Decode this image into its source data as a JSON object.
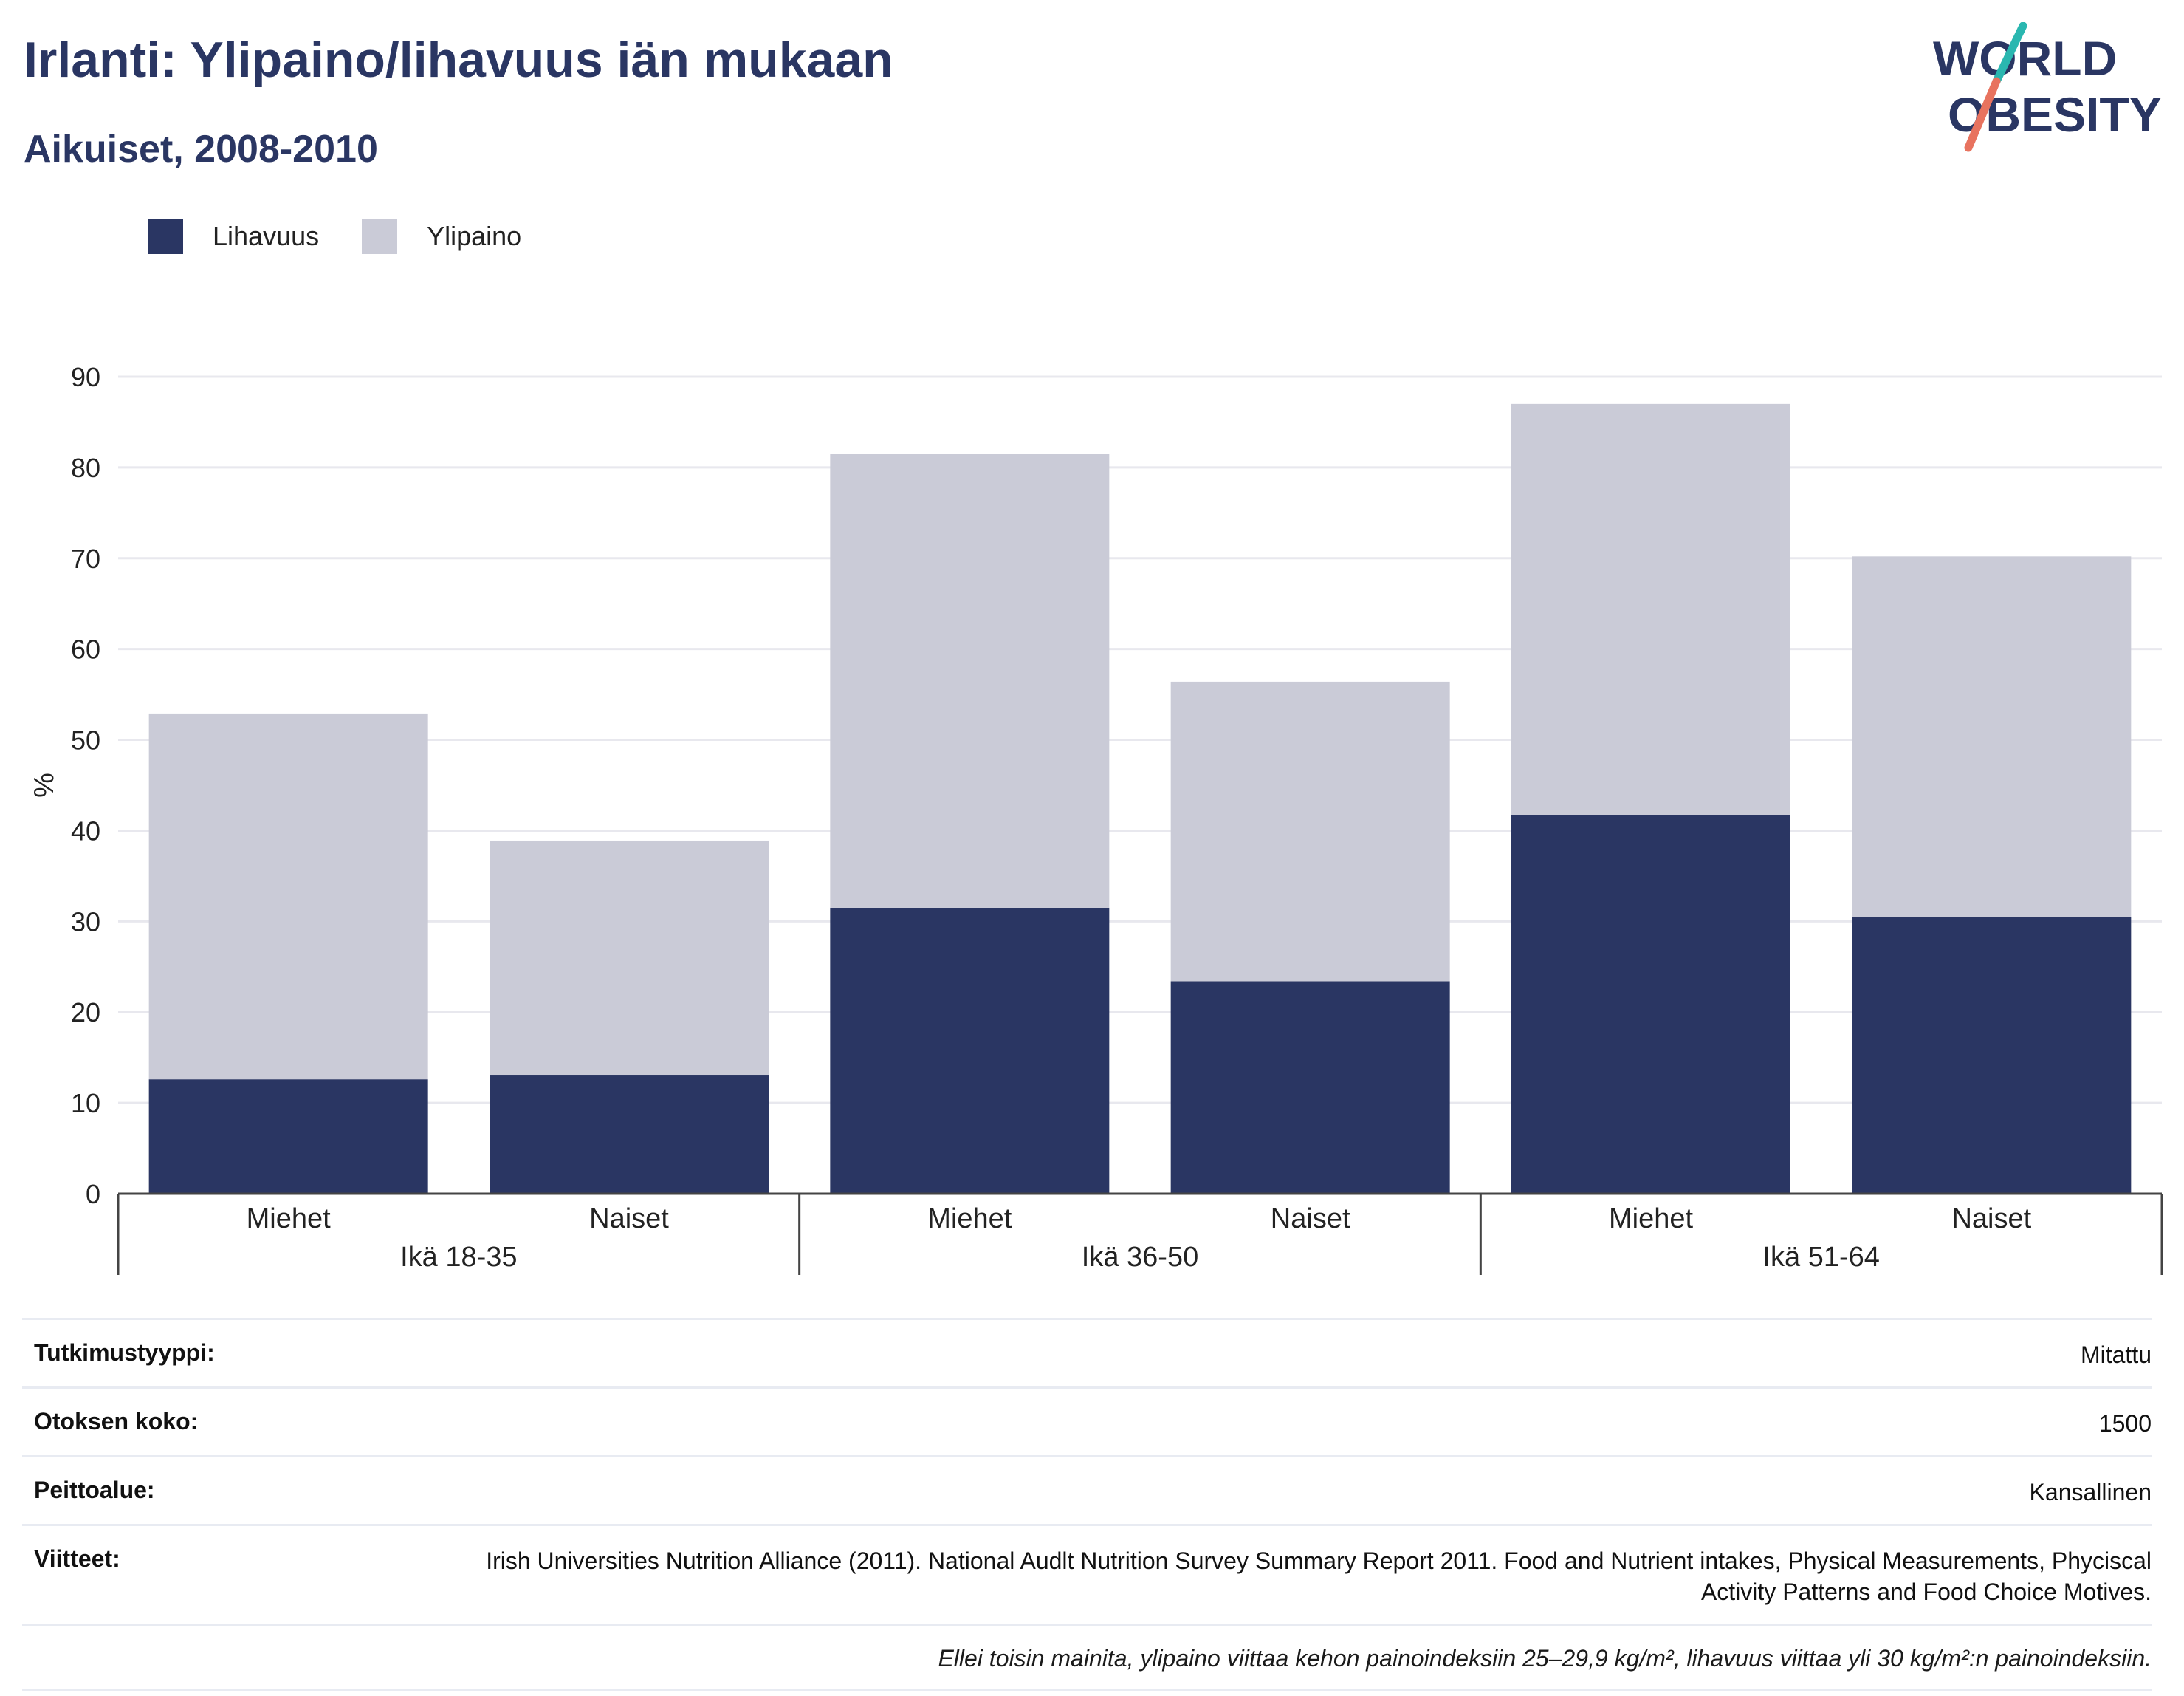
{
  "header": {
    "title": "Irlanti: Ylipaino/lihavuus iän mukaan",
    "subtitle": "Aikuiset, 2008-2010"
  },
  "logo": {
    "line1": "WORLD",
    "line2": "OBESITY"
  },
  "colors": {
    "obesity": "#2a3663",
    "overweight": "#cacbd7",
    "grid": "#e8e8ee",
    "axis": "#444444",
    "brand_teal": "#2ab7b0",
    "brand_coral": "#e8735f"
  },
  "legend": [
    {
      "label": "Lihavuus",
      "color": "#2a3663"
    },
    {
      "label": "Ylipaino",
      "color": "#cacbd7"
    }
  ],
  "chart_data": {
    "type": "bar",
    "stacked": true,
    "ylabel": "%",
    "ylim": [
      0,
      90
    ],
    "yticks": [
      0,
      10,
      20,
      30,
      40,
      50,
      60,
      70,
      80,
      90
    ],
    "grid": true,
    "legend_position": "top-left",
    "groups": [
      "Ikä 18-35",
      "Ikä 36-50",
      "Ikä 51-64"
    ],
    "categories": [
      "Miehet",
      "Naiset",
      "Miehet",
      "Naiset",
      "Miehet",
      "Naiset"
    ],
    "series": [
      {
        "name": "Lihavuus",
        "values": [
          12.6,
          13.1,
          31.5,
          23.4,
          41.7,
          30.5
        ]
      },
      {
        "name": "Ylipaino",
        "values": [
          40.3,
          25.8,
          50.0,
          33.0,
          45.3,
          39.7
        ]
      }
    ]
  },
  "meta": [
    {
      "key": "Tutkimustyyppi:",
      "value": "Mitattu"
    },
    {
      "key": "Otoksen koko:",
      "value": "1500"
    },
    {
      "key": "Peittoalue:",
      "value": "Kansallinen"
    },
    {
      "key": "Viitteet:",
      "value": "Irish Universities Nutrition Alliance (2011). National Audlt Nutrition Survey Summary Report 2011. Food and Nutrient intakes, Physical Measurements, Phyciscal Activity Patterns and Food Choice Motives."
    }
  ],
  "note": "Ellei toisin mainita, ylipaino viittaa kehon painoindeksiin 25–29,9 kg/m², lihavuus viittaa yli 30 kg/m²:n painoindeksiin."
}
